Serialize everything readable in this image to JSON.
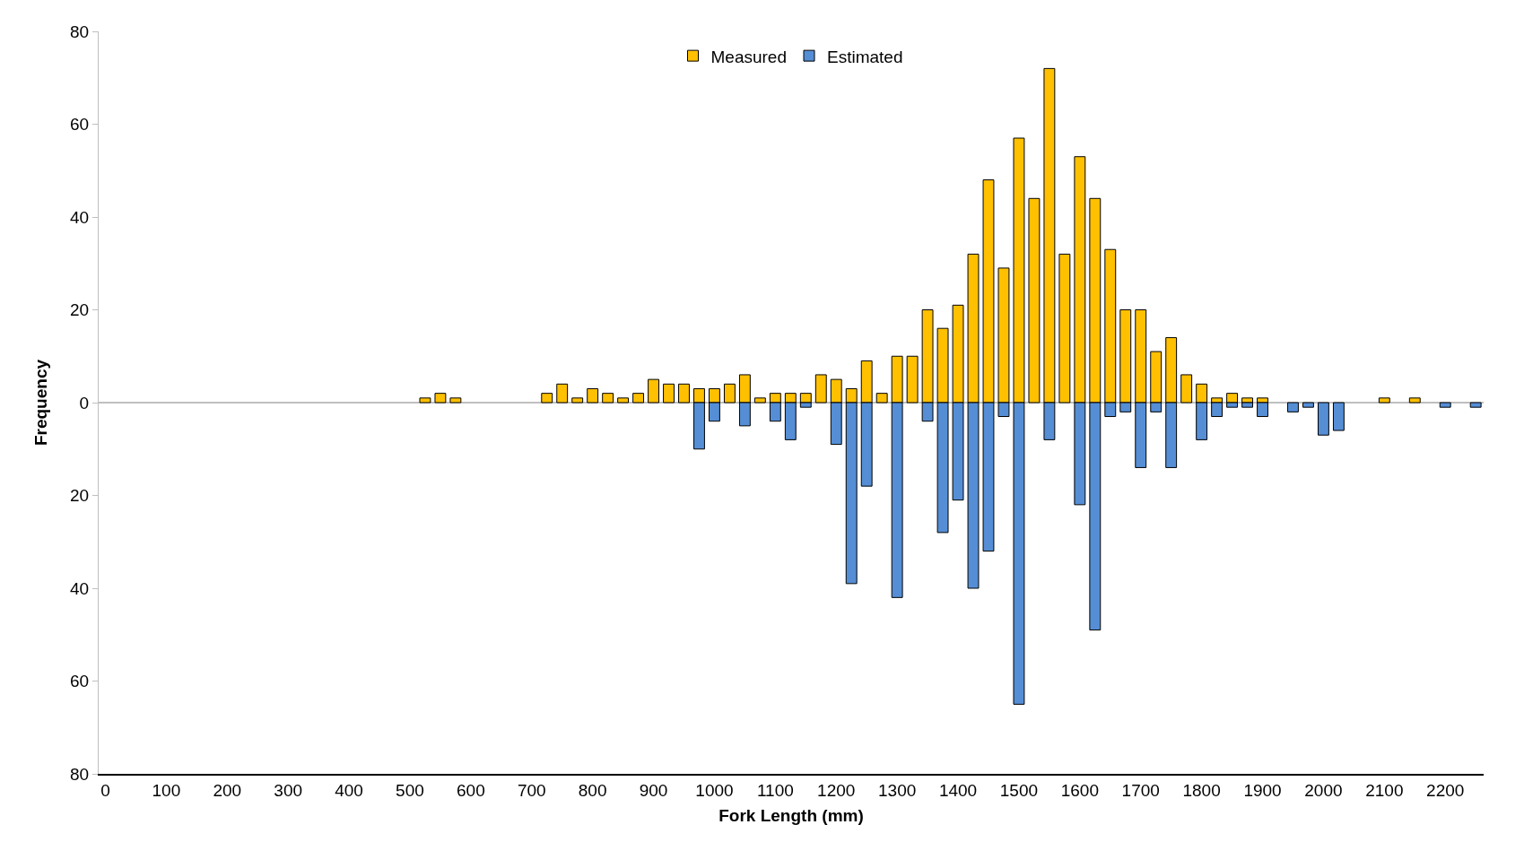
{
  "chart_data": {
    "type": "bar",
    "stacked": true,
    "xlabel": "Fork Length (mm)",
    "ylabel": "Frequency",
    "legend": "top",
    "grid": false,
    "ref_lines": [
      {
        "axis": "y",
        "value": 0,
        "color": "#bfbfbf"
      }
    ],
    "xlim": [
      -11,
      2263
    ],
    "xticks": [
      0,
      100,
      200,
      300,
      400,
      500,
      600,
      700,
      800,
      900,
      1000,
      1100,
      1200,
      1300,
      1400,
      1500,
      1600,
      1700,
      1800,
      1900,
      2000,
      2100,
      2200
    ],
    "ylim": [
      -80,
      80
    ],
    "yticks": [
      {
        "value": -80,
        "label": "80"
      },
      {
        "value": -60,
        "label": "60"
      },
      {
        "value": -40,
        "label": "40"
      },
      {
        "value": -20,
        "label": "20"
      },
      0,
      20,
      40,
      60,
      80
    ],
    "series": [
      {
        "name": "Measured",
        "color": "#ffc000",
        "x": [
          525,
          550,
          575,
          725,
          750,
          775,
          800,
          825,
          850,
          875,
          900,
          925,
          950,
          975,
          1000,
          1025,
          1050,
          1075,
          1100,
          1125,
          1150,
          1175,
          1200,
          1225,
          1250,
          1275,
          1300,
          1325,
          1350,
          1375,
          1400,
          1425,
          1450,
          1475,
          1500,
          1525,
          1550,
          1575,
          1600,
          1625,
          1650,
          1675,
          1700,
          1725,
          1750,
          1775,
          1800,
          1825,
          1850,
          1875,
          1900,
          2100,
          2150
        ],
        "values": [
          1,
          2,
          1,
          2,
          4,
          1,
          3,
          2,
          1,
          2,
          5,
          4,
          4,
          3,
          3,
          4,
          6,
          1,
          2,
          2,
          2,
          6,
          5,
          3,
          9,
          2,
          10,
          10,
          20,
          16,
          21,
          32,
          48,
          29,
          57,
          44,
          72,
          32,
          53,
          44,
          33,
          20,
          20,
          11,
          14,
          6,
          4,
          1,
          2,
          1,
          1,
          1,
          1
        ]
      },
      {
        "name": "Estimated",
        "color": "#558ed5",
        "x": [
          975,
          1000,
          1050,
          1100,
          1125,
          1150,
          1200,
          1225,
          1250,
          1300,
          1350,
          1375,
          1400,
          1425,
          1450,
          1475,
          1500,
          1550,
          1600,
          1625,
          1650,
          1675,
          1700,
          1725,
          1750,
          1800,
          1825,
          1850,
          1875,
          1900,
          1950,
          1975,
          2000,
          2025,
          2200,
          2250
        ],
        "values": [
          -10,
          -4,
          -5,
          -4,
          -8,
          -1,
          -9,
          -39,
          -18,
          -42,
          -4,
          -28,
          -21,
          -40,
          -32,
          -3,
          -65,
          -8,
          -22,
          -49,
          -3,
          -2,
          -14,
          -2,
          -14,
          -8,
          -3,
          -1,
          -1,
          -3,
          -2,
          -1,
          -7,
          -6,
          -1,
          -1
        ]
      }
    ]
  }
}
